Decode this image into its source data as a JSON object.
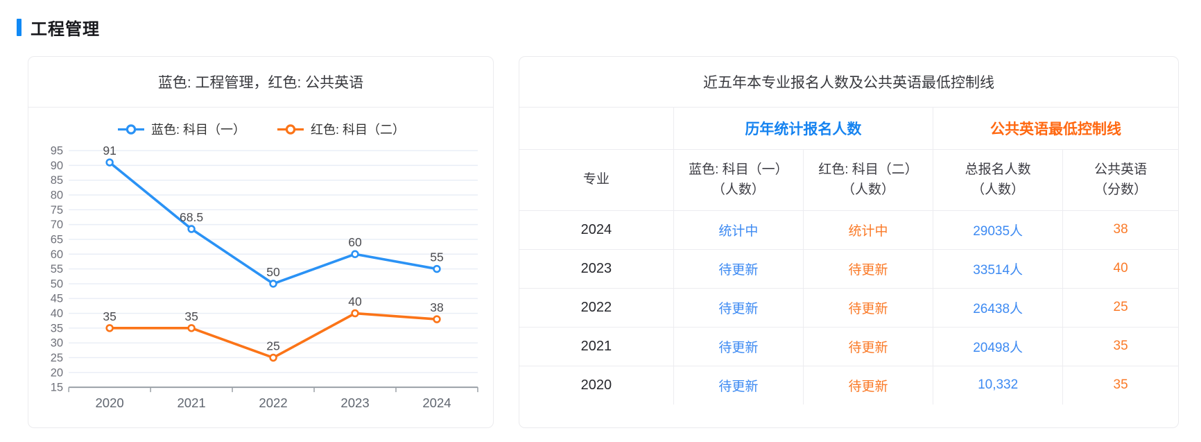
{
  "page": {
    "title": "工程管理"
  },
  "colors": {
    "accent": "#1089f5",
    "blue": "#2a92f5",
    "orange": "#fb7418",
    "table_blue": "#3d8af2",
    "table_orange": "#fa7a28",
    "group_blue": "#1583f0",
    "group_orange": "#ff6811"
  },
  "chart_data": {
    "type": "line",
    "title": "蓝色: 工程管理，红色: 公共英语",
    "categories": [
      "2020",
      "2021",
      "2022",
      "2023",
      "2024"
    ],
    "series": [
      {
        "name": "蓝色: 科目（一）",
        "color": "#2a92f5",
        "values": [
          91,
          68.5,
          50,
          60,
          55
        ]
      },
      {
        "name": "红色: 科目（二）",
        "color": "#fb7418",
        "values": [
          35,
          35,
          25,
          40,
          38
        ]
      }
    ],
    "ylim": [
      15,
      95
    ],
    "ytick_step": 5,
    "grid": true,
    "legend_position": "top",
    "data_labels": true
  },
  "table": {
    "title": "近五年本专业报名人数及公共英语最低控制线",
    "group_headers": [
      {
        "label": "",
        "span": 1,
        "tone": ""
      },
      {
        "label": "历年统计报名人数",
        "span": 2,
        "tone": "blue"
      },
      {
        "label": "公共英语最低控制线",
        "span": 2,
        "tone": "orange"
      }
    ],
    "columns": [
      {
        "label": "专业",
        "sub": "",
        "width": "23.4%"
      },
      {
        "label": "蓝色: 科目（一）",
        "sub": "（人数）",
        "width": "19.7%"
      },
      {
        "label": "红色: 科目（二）",
        "sub": "（人数）",
        "width": "19.7%"
      },
      {
        "label": "总报名人数",
        "sub": "（人数）",
        "width": "19.7%"
      },
      {
        "label": "公共英语",
        "sub": "（分数）",
        "width": "17.5%"
      }
    ],
    "rows": [
      {
        "year": "2024",
        "subject1": "统计中",
        "subject2": "统计中",
        "total": "29035人",
        "english": "38"
      },
      {
        "year": "2023",
        "subject1": "待更新",
        "subject2": "待更新",
        "total": "33514人",
        "english": "40"
      },
      {
        "year": "2022",
        "subject1": "待更新",
        "subject2": "待更新",
        "total": "26438人",
        "english": "25"
      },
      {
        "year": "2021",
        "subject1": "待更新",
        "subject2": "待更新",
        "total": "20498人",
        "english": "35"
      },
      {
        "year": "2020",
        "subject1": "待更新",
        "subject2": "待更新",
        "total": "10,332",
        "english": "35"
      }
    ]
  }
}
